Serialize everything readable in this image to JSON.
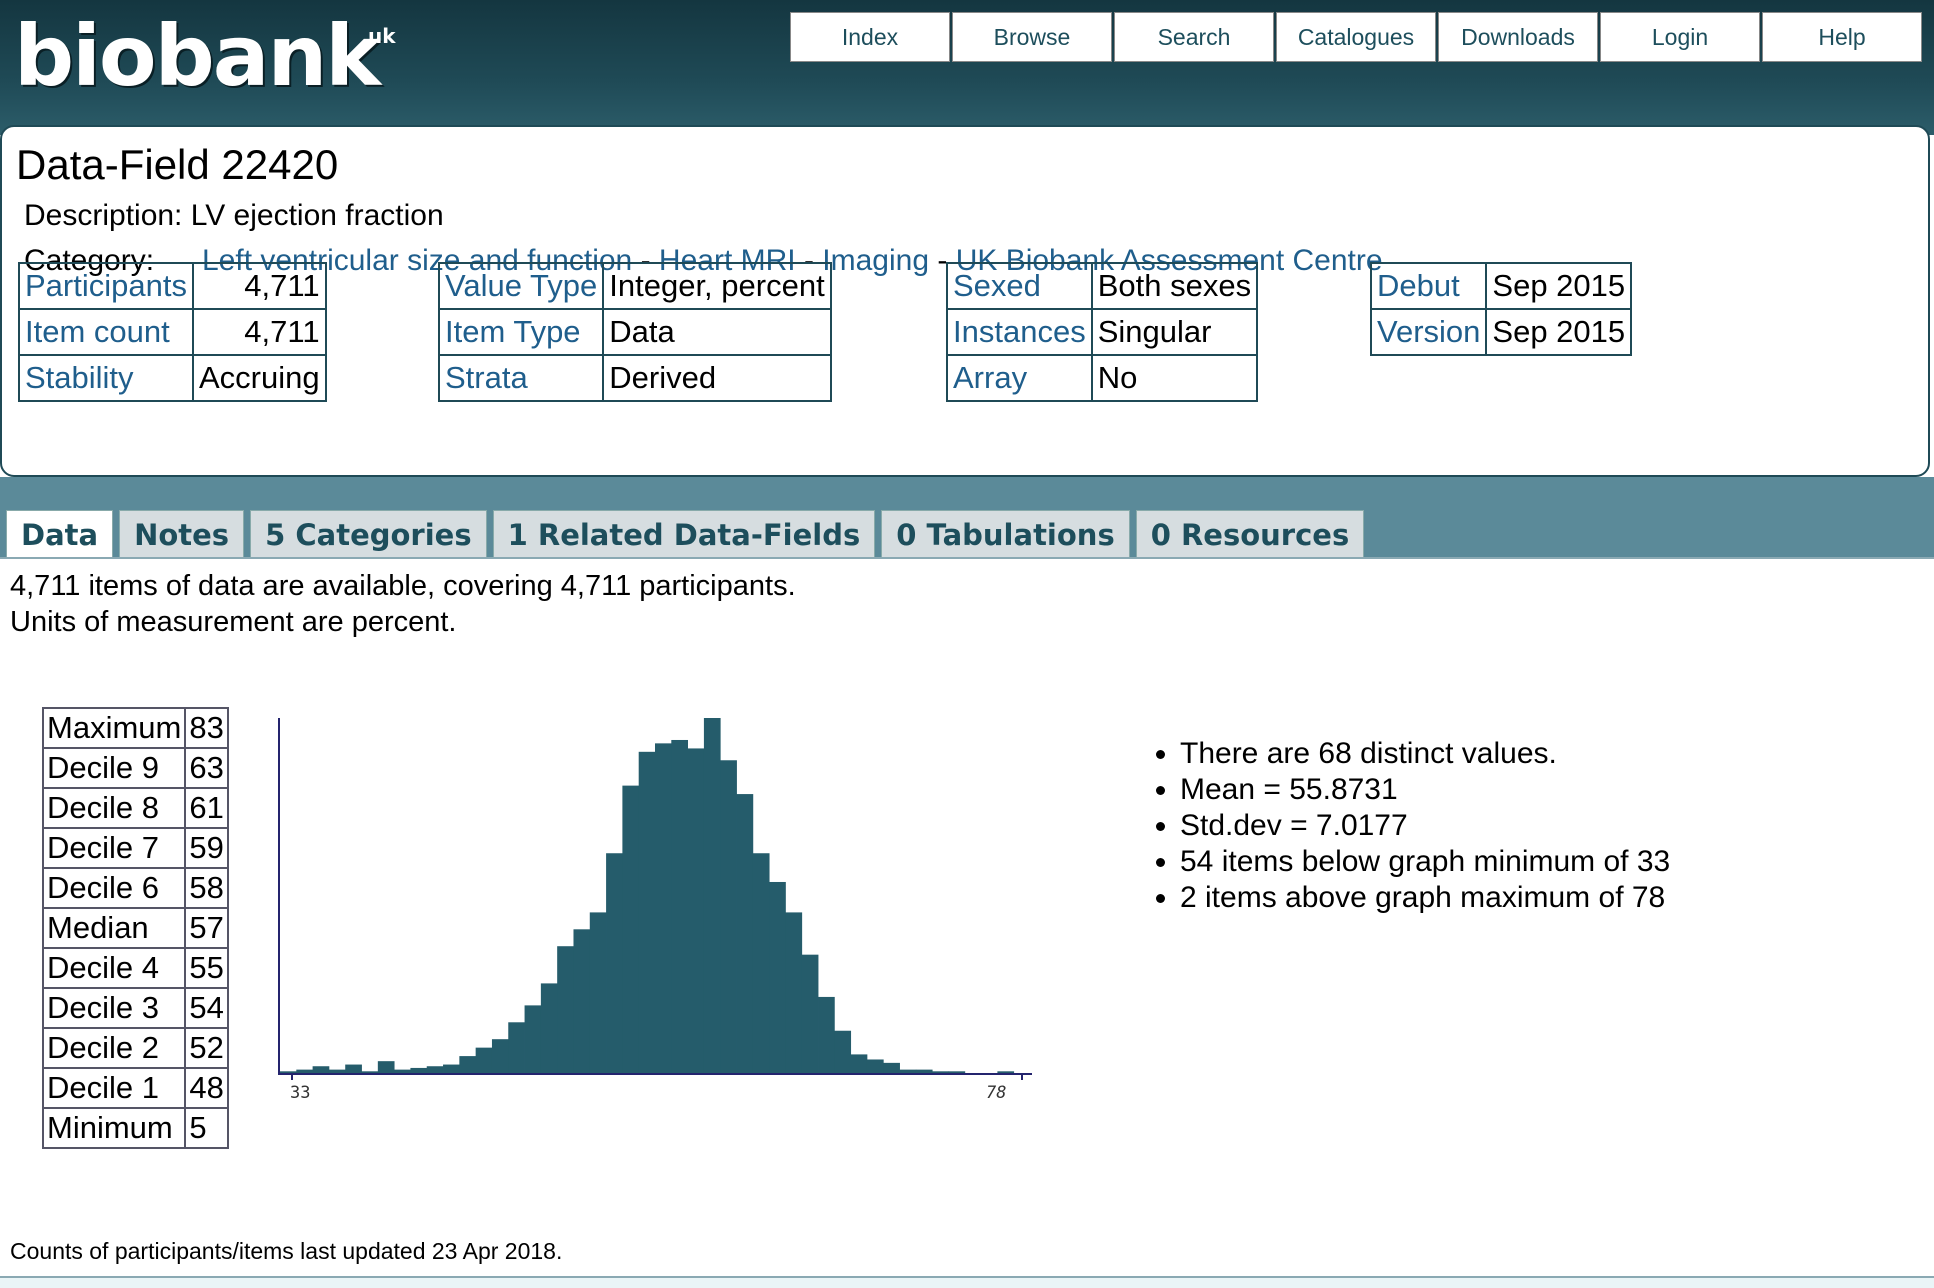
{
  "logo": {
    "text": "biobank",
    "sup": "uk"
  },
  "nav": [
    "Index",
    "Browse",
    "Search",
    "Catalogues",
    "Downloads",
    "Login",
    "Help"
  ],
  "field": {
    "title": "Data-Field 22420",
    "description_label": "Description:",
    "description": "LV ejection fraction",
    "category_label": "Category:",
    "category_path": [
      "Left ventricular size and function",
      "Heart MRI",
      "Imaging",
      "UK Biobank Assessment Centre"
    ],
    "category_sep": " - "
  },
  "info_tables": {
    "t1": [
      [
        "Participants",
        "4,711"
      ],
      [
        "Item count",
        "4,711"
      ],
      [
        "Stability",
        "Accruing"
      ]
    ],
    "t2": [
      [
        "Value Type",
        "Integer, percent"
      ],
      [
        "Item Type",
        "Data"
      ],
      [
        "Strata",
        "Derived"
      ]
    ],
    "t3": [
      [
        "Sexed",
        "Both sexes"
      ],
      [
        "Instances",
        "Singular"
      ],
      [
        "Array",
        "No"
      ]
    ],
    "t4": [
      [
        "Debut",
        "Sep 2015"
      ],
      [
        "Version",
        "Sep 2015"
      ]
    ]
  },
  "tabs": [
    "Data",
    "Notes",
    "5 Categories",
    "1 Related Data-Fields",
    "0 Tabulations",
    "0 Resources"
  ],
  "content": {
    "line1": "4,711 items of data are available, covering 4,711 participants.",
    "line2": "Units of measurement are percent.",
    "footer": "Counts of participants/items last updated 23 Apr 2018."
  },
  "deciles": [
    [
      "Maximum",
      "83"
    ],
    [
      "Decile 9",
      "63"
    ],
    [
      "Decile 8",
      "61"
    ],
    [
      "Decile 7",
      "59"
    ],
    [
      "Decile 6",
      "58"
    ],
    [
      "Median",
      "57"
    ],
    [
      "Decile 4",
      "55"
    ],
    [
      "Decile 3",
      "54"
    ],
    [
      "Decile 2",
      "52"
    ],
    [
      "Decile 1",
      "48"
    ],
    [
      "Minimum",
      "5"
    ]
  ],
  "stats": [
    "There are 68 distinct values.",
    "Mean = 55.8731",
    "Std.dev = 7.0177",
    "54 items below graph minimum of 33",
    "2 items above graph maximum of 78"
  ],
  "chart_data": {
    "type": "bar",
    "xmin_label": "33",
    "xmax_label": "78",
    "values": [
      2,
      4,
      8,
      4,
      10,
      2,
      14,
      4,
      6,
      8,
      10,
      20,
      30,
      40,
      60,
      80,
      106,
      150,
      170,
      190,
      260,
      340,
      380,
      390,
      394,
      384,
      420,
      370,
      330,
      260,
      226,
      190,
      140,
      90,
      50,
      22,
      16,
      12,
      4,
      4,
      2,
      2,
      0,
      0,
      2,
      0
    ],
    "bar_color": "#255c6b",
    "axis_color": "#24246e"
  }
}
